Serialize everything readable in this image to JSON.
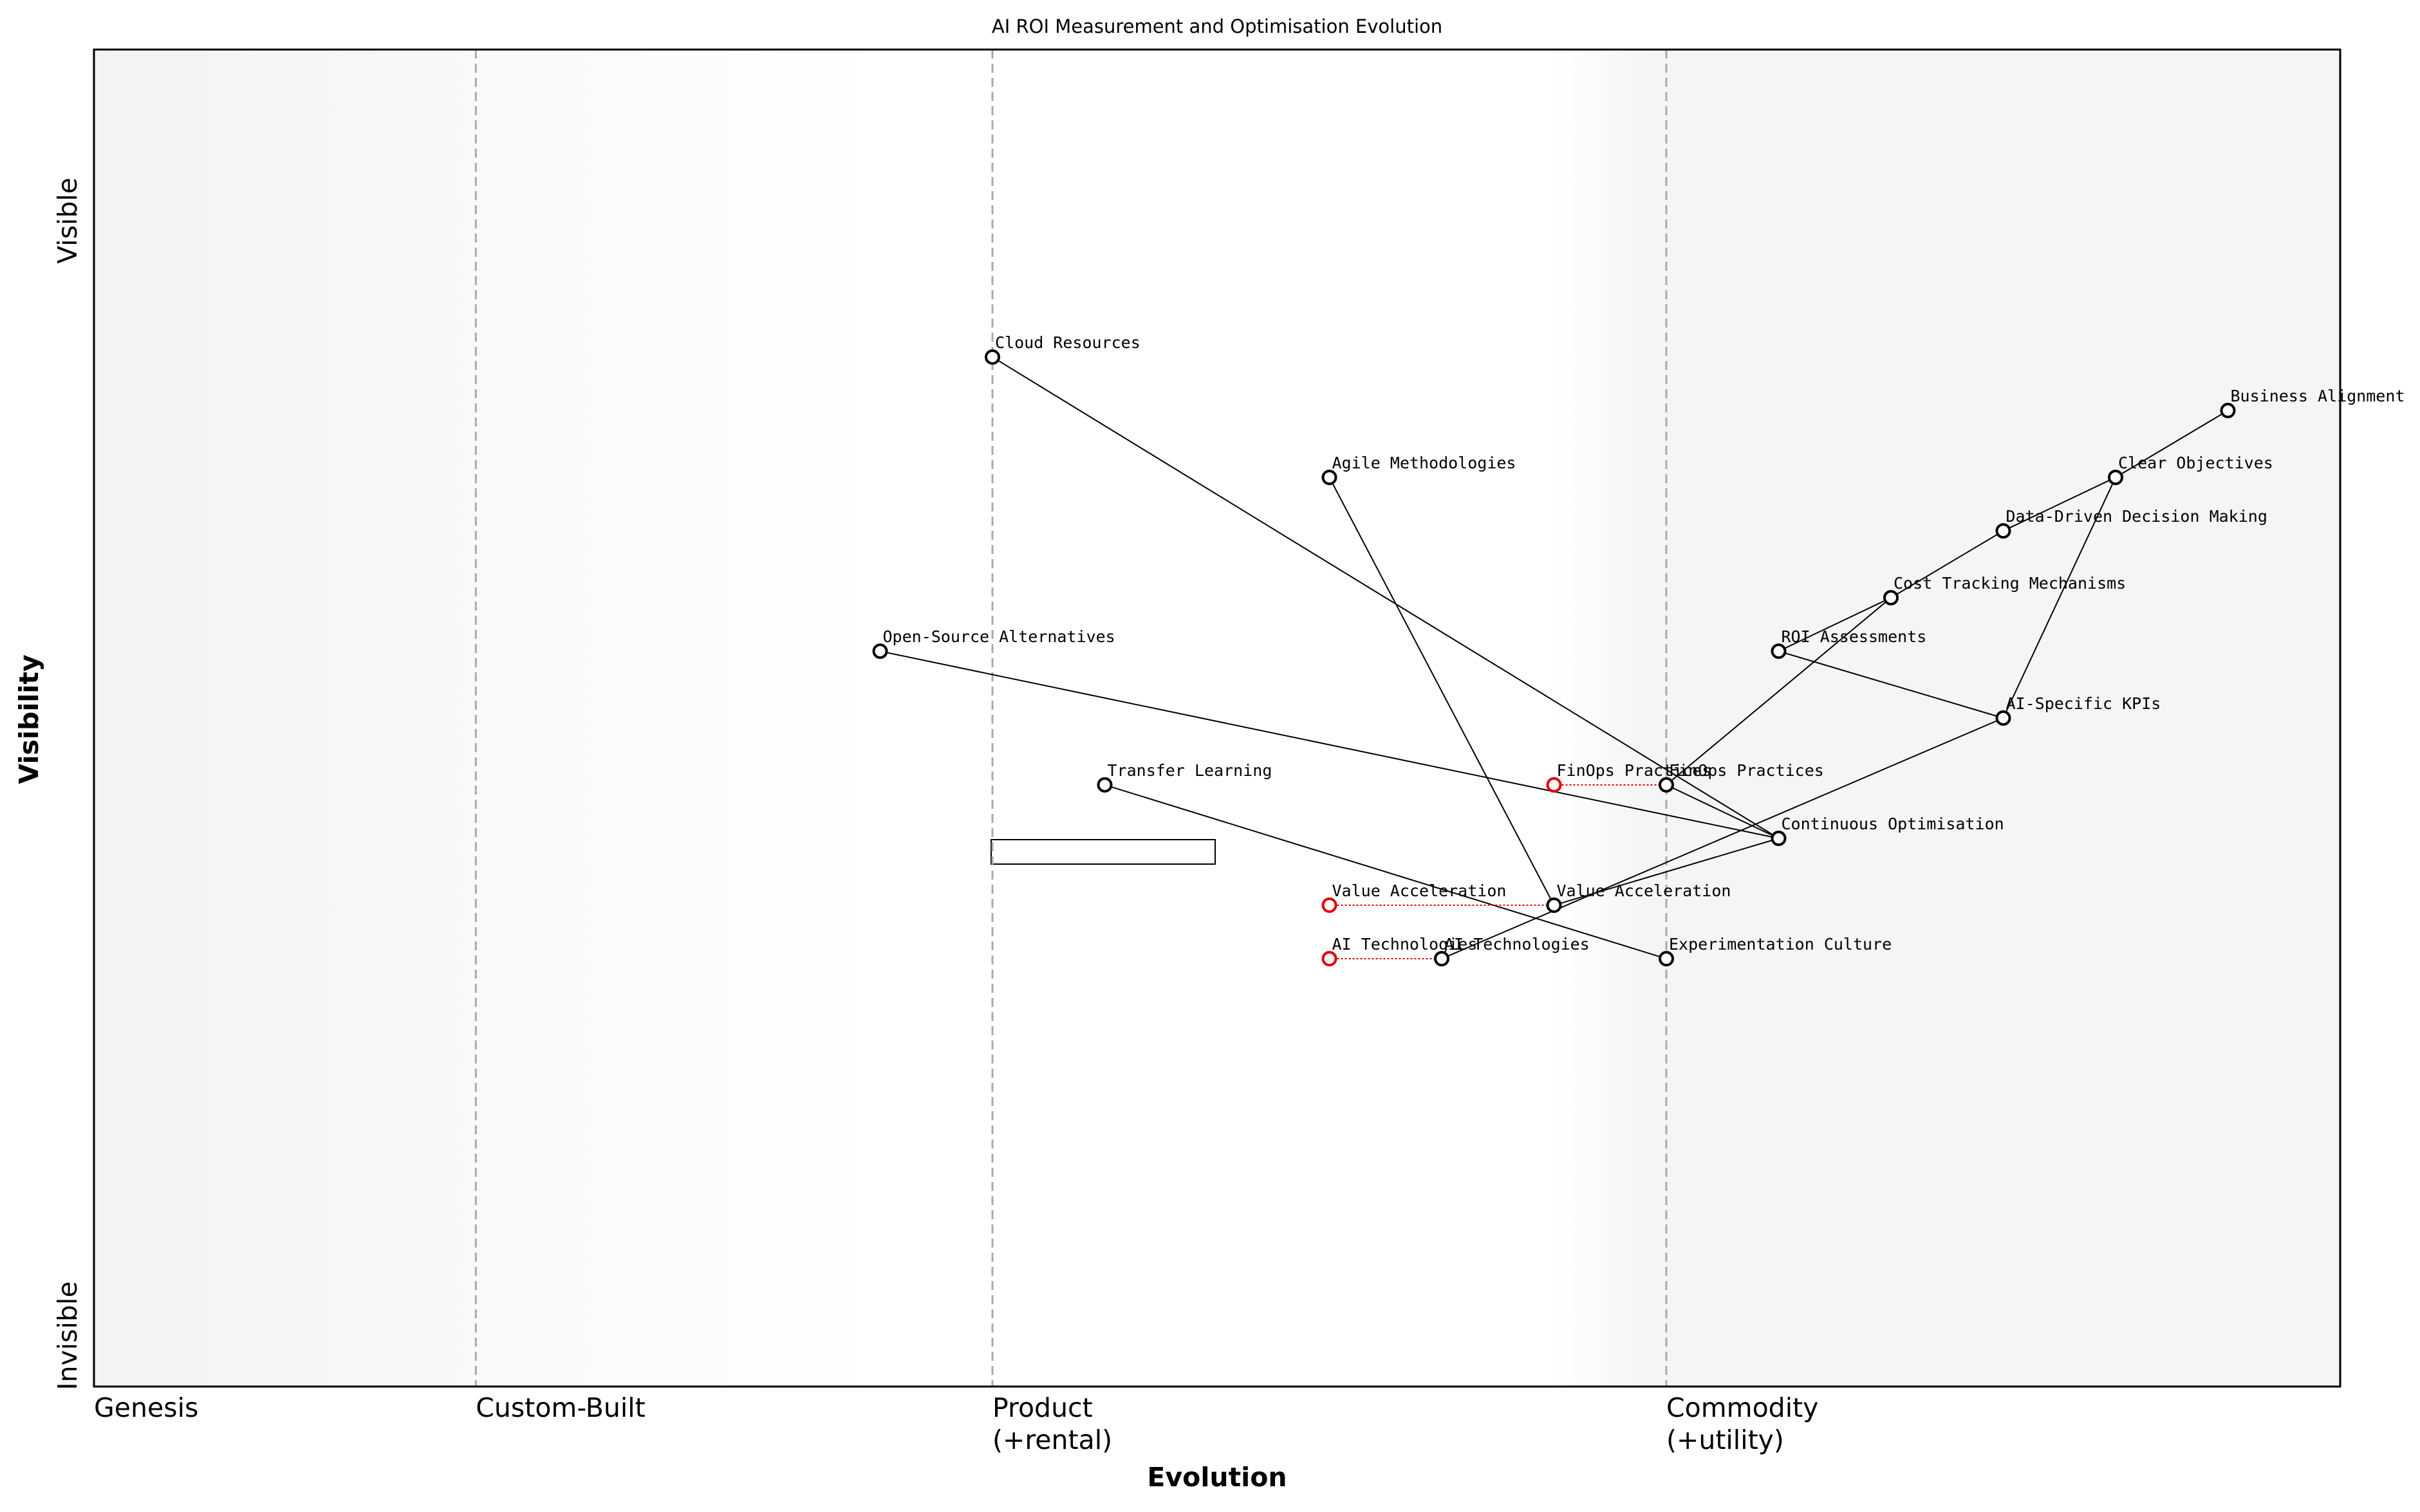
{
  "chart_data": {
    "type": "wardley",
    "title": "AI ROI Measurement and Optimisation Evolution",
    "x_label": "Evolution",
    "y_label": "Visibility",
    "y_top_label": "Visible",
    "y_bottom_label": "Invisible",
    "xlim": [
      0,
      1
    ],
    "ylim": [
      0,
      1
    ],
    "stages": [
      {
        "value": 0,
        "label": [
          "Genesis"
        ]
      },
      {
        "value": 0.17,
        "label": [
          "Custom-Built"
        ]
      },
      {
        "value": 0.4,
        "label": [
          "Product",
          "(+rental)"
        ]
      },
      {
        "value": 0.7,
        "label": [
          "Commodity",
          "(+utility)"
        ]
      }
    ],
    "components": [
      {
        "name": "Cloud Resources",
        "x": 0.4,
        "y": 0.77
      },
      {
        "name": "Agile Methodologies",
        "x": 0.55,
        "y": 0.68
      },
      {
        "name": "Business Alignment",
        "x": 0.95,
        "y": 0.73
      },
      {
        "name": "Clear Objectives",
        "x": 0.9,
        "y": 0.68
      },
      {
        "name": "Data-Driven Decision Making",
        "x": 0.85,
        "y": 0.64
      },
      {
        "name": "Cost Tracking Mechanisms",
        "x": 0.8,
        "y": 0.59
      },
      {
        "name": "ROI Assessments",
        "x": 0.75,
        "y": 0.55
      },
      {
        "name": "AI-Specific KPIs",
        "x": 0.85,
        "y": 0.5
      },
      {
        "name": "Open-Source Alternatives",
        "x": 0.35,
        "y": 0.55
      },
      {
        "name": "Transfer Learning",
        "x": 0.45,
        "y": 0.45
      },
      {
        "name": "FinOps Practices",
        "x": 0.7,
        "y": 0.45
      },
      {
        "name": "Continuous Optimisation",
        "x": 0.75,
        "y": 0.41
      },
      {
        "name": "Value Acceleration",
        "x": 0.65,
        "y": 0.36
      },
      {
        "name": "AI Technologies",
        "x": 0.6,
        "y": 0.32
      },
      {
        "name": "Experimentation Culture",
        "x": 0.7,
        "y": 0.32
      }
    ],
    "evolutions": [
      {
        "name": "FinOps Practices",
        "from": 0.65,
        "to": 0.7,
        "y": 0.45,
        "color": "#e00000"
      },
      {
        "name": "Value Acceleration",
        "from": 0.55,
        "to": 0.65,
        "y": 0.36,
        "color": "#e00000"
      },
      {
        "name": "AI Technologies",
        "from": 0.55,
        "to": 0.6,
        "y": 0.32,
        "color": "#e00000"
      }
    ],
    "links": [
      [
        "Business Alignment",
        "Clear Objectives"
      ],
      [
        "Clear Objectives",
        "Data-Driven Decision Making"
      ],
      [
        "Data-Driven Decision Making",
        "Cost Tracking Mechanisms"
      ],
      [
        "Cost Tracking Mechanisms",
        "ROI Assessments"
      ],
      [
        "Cost Tracking Mechanisms",
        "FinOps Practices"
      ],
      [
        "Clear Objectives",
        "AI-Specific KPIs"
      ],
      [
        "ROI Assessments",
        "AI-Specific KPIs"
      ],
      [
        "AI-Specific KPIs",
        "AI Technologies"
      ],
      [
        "Cloud Resources",
        "Continuous Optimisation"
      ],
      [
        "Agile Methodologies",
        "Value Acceleration"
      ],
      [
        "Open-Source Alternatives",
        "Continuous Optimisation"
      ],
      [
        "Transfer Learning",
        "Experimentation Culture"
      ],
      [
        "FinOps Practices",
        "Continuous Optimisation"
      ],
      [
        "Value Acceleration",
        "Continuous Optimisation"
      ]
    ]
  }
}
